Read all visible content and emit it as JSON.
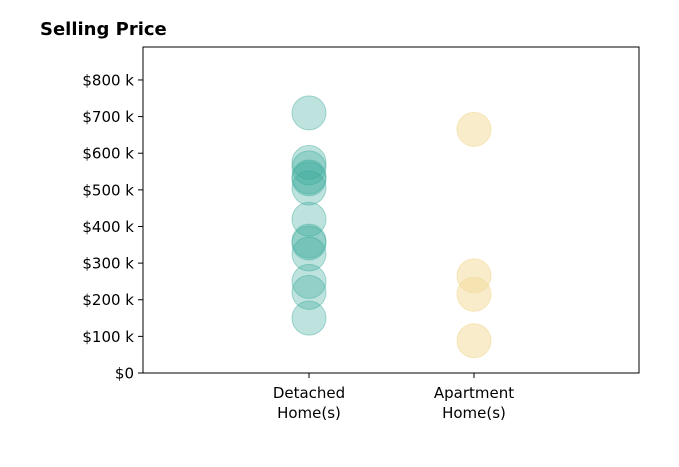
{
  "chart_data": {
    "type": "scatter",
    "title": "Selling Price",
    "xlabel": "",
    "ylabel": "",
    "categories": [
      [
        "Detached",
        "Home(s)"
      ],
      [
        "Apartment",
        "Home(s)"
      ]
    ],
    "ylim": [
      0,
      890000
    ],
    "yticks": [
      {
        "value": 0,
        "label": "$0"
      },
      {
        "value": 100000,
        "label": "$100 k"
      },
      {
        "value": 200000,
        "label": "$200 k"
      },
      {
        "value": 300000,
        "label": "$300 k"
      },
      {
        "value": 400000,
        "label": "$400 k"
      },
      {
        "value": 500000,
        "label": "$500 k"
      },
      {
        "value": 600000,
        "label": "$600 k"
      },
      {
        "value": 700000,
        "label": "$700 k"
      },
      {
        "value": 800000,
        "label": "$800 k"
      }
    ],
    "grid": false,
    "series": [
      {
        "category": 0,
        "color": "#3aaa9a",
        "opacity": 0.33,
        "values": [
          710000,
          575000,
          560000,
          535000,
          530000,
          505000,
          420000,
          360000,
          355000,
          325000,
          250000,
          220000,
          150000
        ]
      },
      {
        "category": 1,
        "color": "#f2dc9e",
        "opacity": 0.55,
        "values": [
          665000,
          265000,
          215000,
          88000
        ]
      }
    ]
  }
}
